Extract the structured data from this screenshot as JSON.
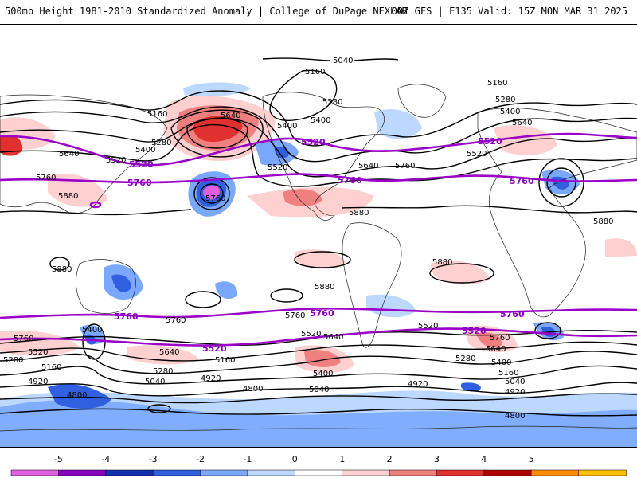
{
  "header": {
    "left_title": "500mb Height 1981-2010 Standardized Anomaly | College of DuPage NEXLAB",
    "right_title": "00Z GFS | F135 Valid: 15Z MON MAR 31 2025"
  },
  "contour_labels": {
    "c5040": "5040",
    "c5160": "5160",
    "c5280": "5280",
    "c5400": "5400",
    "c5520": "5520",
    "c5640": "5640",
    "c5760": "5760",
    "c5880": "5880",
    "c4920": "4920",
    "c4800": "4800"
  },
  "colorbar": {
    "ticks": [
      "-5",
      "-4",
      "-3",
      "-2",
      "-1",
      "0",
      "1",
      "2",
      "3",
      "4",
      "5"
    ],
    "colors": [
      "#e060e0",
      "#8a00c0",
      "#1030b0",
      "#3060e0",
      "#7aa8ff",
      "#bcd8ff",
      "#ffffff",
      "#ffd0d0",
      "#f08080",
      "#e03030",
      "#b00000",
      "#ff8c00",
      "#ffc000"
    ]
  },
  "colors": {
    "key_contour": "#9a00c8",
    "positive_anomaly": "#e03030",
    "negative_anomaly": "#3060e0"
  }
}
